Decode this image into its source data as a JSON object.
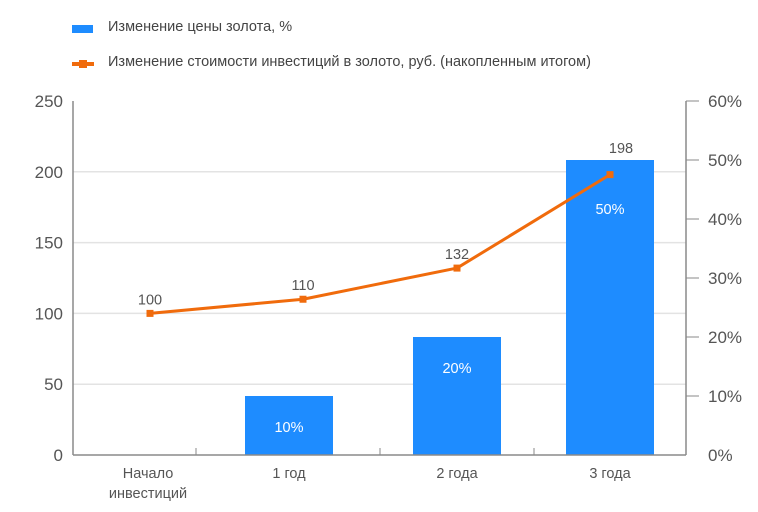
{
  "chart_data": {
    "type": "bar+line",
    "title": "",
    "categories": [
      "Начало\nинвестиций",
      "1 год",
      "2 года",
      "3 года"
    ],
    "series": [
      {
        "name": "Изменение цены золота, %",
        "type": "bar",
        "axis": "right",
        "values": [
          0,
          10,
          20,
          50
        ],
        "data_labels": [
          "",
          "10%",
          "20%",
          "50%"
        ],
        "color": "#1e8cff"
      },
      {
        "name": "Изменение стоимости инвестиций в золото, руб. (накопленным итогом)",
        "type": "line",
        "axis": "left",
        "values": [
          100,
          110,
          132,
          198
        ],
        "data_labels": [
          "100",
          "110",
          "132",
          "198"
        ],
        "color": "#f06b0c"
      }
    ],
    "left_axis": {
      "ticks": [
        "0",
        "50",
        "100",
        "150",
        "200",
        "250"
      ],
      "ylim": [
        0,
        250
      ]
    },
    "right_axis": {
      "ticks": [
        "0%",
        "10%",
        "20%",
        "30%",
        "40%",
        "50%",
        "60%"
      ],
      "ylim": [
        0,
        60
      ]
    },
    "xlabel": "",
    "ylabel": "",
    "grid": true,
    "legend_position": "top-left"
  },
  "legend": {
    "items": [
      {
        "label": "Изменение цены золота, %"
      },
      {
        "label": "Изменение стоимости инвестиций в золото, руб. (накопленным итогом)"
      }
    ]
  }
}
